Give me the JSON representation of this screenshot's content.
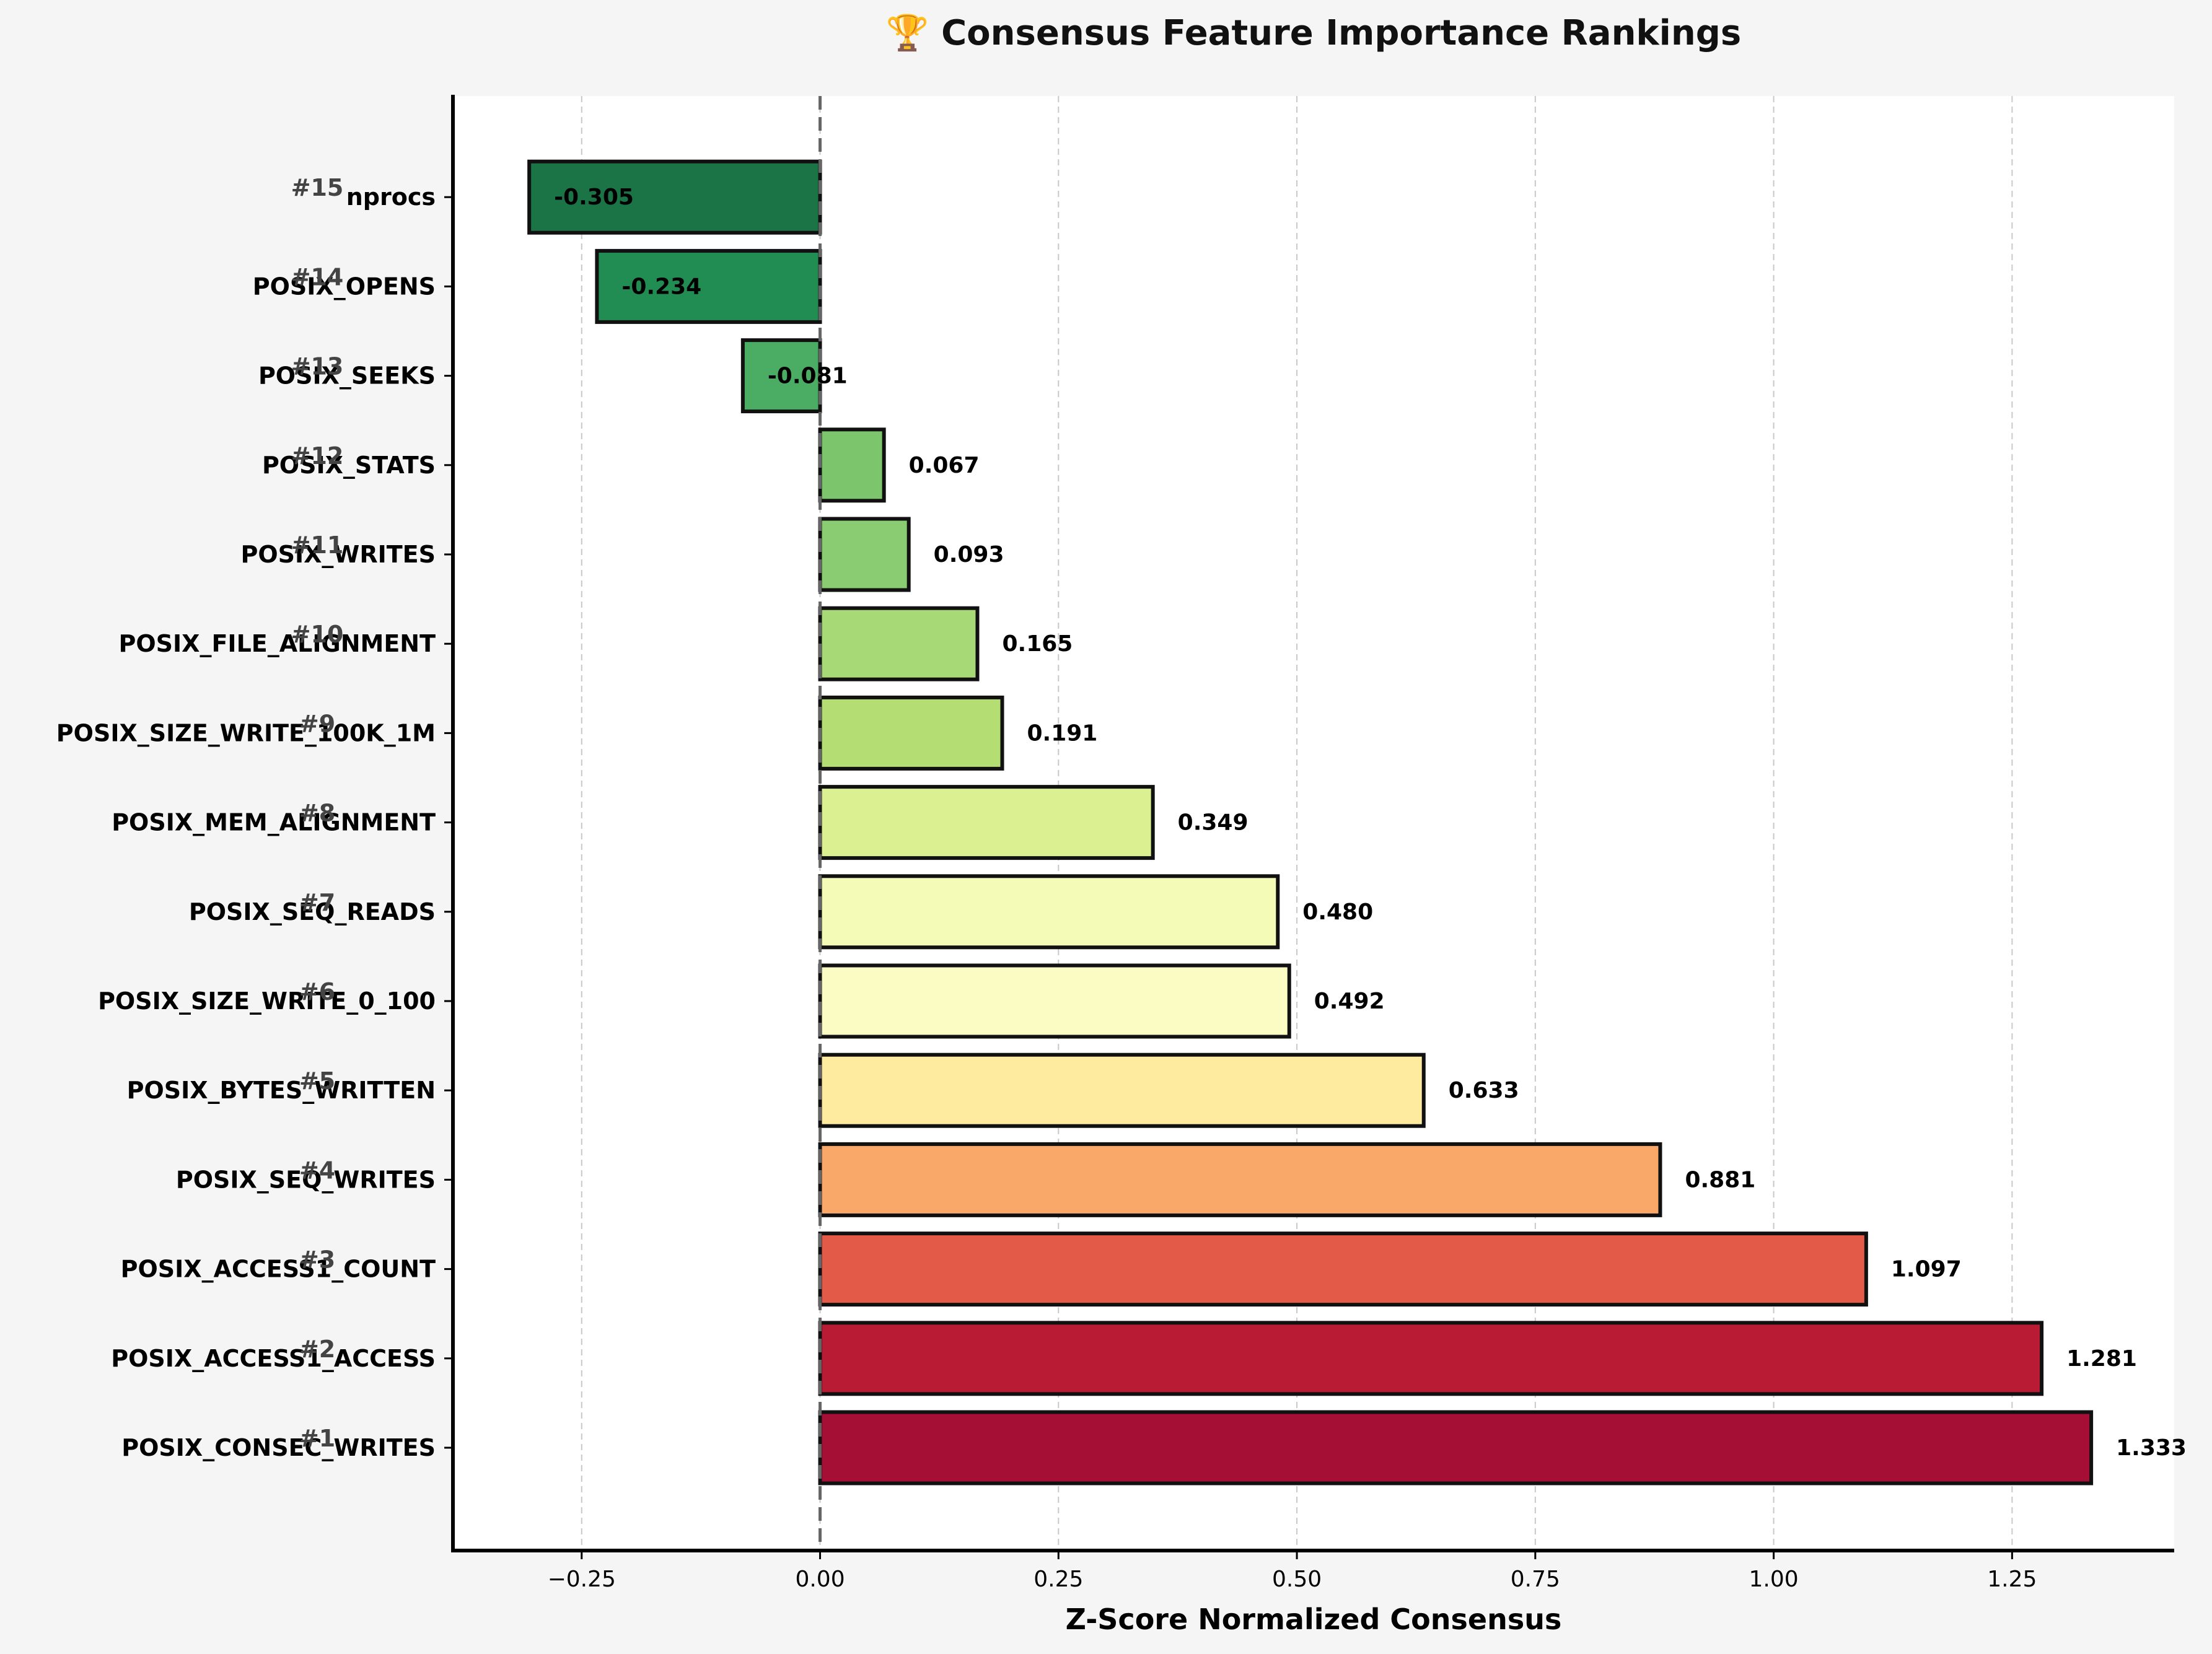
{
  "chart_data": {
    "type": "bar",
    "orientation": "horizontal",
    "title": "🏆 Consensus Feature Importance Rankings",
    "xlabel": "Z-Score Normalized Consensus",
    "ylabel": "",
    "xlim": [
      -0.385,
      1.42
    ],
    "grid": true,
    "zero_line": true,
    "x_ticks": [
      -0.25,
      0.0,
      0.25,
      0.5,
      0.75,
      1.0,
      1.25
    ],
    "x_tick_labels": [
      "−0.25",
      "0.00",
      "0.25",
      "0.50",
      "0.75",
      "1.00",
      "1.25"
    ],
    "bars": [
      {
        "rank": "#1",
        "category": "POSIX_CONSEC_WRITES",
        "value": 1.333,
        "label": "1.333",
        "color": "#a50f35"
      },
      {
        "rank": "#2",
        "category": "POSIX_ACCESS1_ACCESS",
        "value": 1.281,
        "label": "1.281",
        "color": "#ba1b34"
      },
      {
        "rank": "#3",
        "category": "POSIX_ACCESS1_COUNT",
        "value": 1.097,
        "label": "1.097",
        "color": "#e45a48"
      },
      {
        "rank": "#4",
        "category": "POSIX_SEQ_WRITES",
        "value": 0.881,
        "label": "0.881",
        "color": "#f9a86a"
      },
      {
        "rank": "#5",
        "category": "POSIX_BYTES_WRITTEN",
        "value": 0.633,
        "label": "0.633",
        "color": "#feeba0"
      },
      {
        "rank": "#6",
        "category": "POSIX_SIZE_WRITE_0_100",
        "value": 0.492,
        "label": "0.492",
        "color": "#fafcc4"
      },
      {
        "rank": "#7",
        "category": "POSIX_SEQ_READS",
        "value": 0.48,
        "label": "0.480",
        "color": "#f4fbb6"
      },
      {
        "rank": "#8",
        "category": "POSIX_MEM_ALIGNMENT",
        "value": 0.349,
        "label": "0.349",
        "color": "#dbf091"
      },
      {
        "rank": "#9",
        "category": "POSIX_SIZE_WRITE_100K_1M",
        "value": 0.191,
        "label": "0.191",
        "color": "#b4dd74"
      },
      {
        "rank": "#10",
        "category": "POSIX_FILE_ALIGNMENT",
        "value": 0.165,
        "label": "0.165",
        "color": "#a8d977"
      },
      {
        "rank": "#11",
        "category": "POSIX_WRITES",
        "value": 0.093,
        "label": "0.093",
        "color": "#8acc72"
      },
      {
        "rank": "#12",
        "category": "POSIX_STATS",
        "value": 0.067,
        "label": "0.067",
        "color": "#7dc56d"
      },
      {
        "rank": "#13",
        "category": "POSIX_SEEKS",
        "value": -0.081,
        "label": "-0.081",
        "color": "#4aad63"
      },
      {
        "rank": "#14",
        "category": "POSIX_OPENS",
        "value": -0.234,
        "label": "-0.234",
        "color": "#228d52"
      },
      {
        "rank": "#15",
        "category": "nprocs",
        "value": -0.305,
        "label": "-0.305",
        "color": "#1a7446"
      }
    ]
  }
}
